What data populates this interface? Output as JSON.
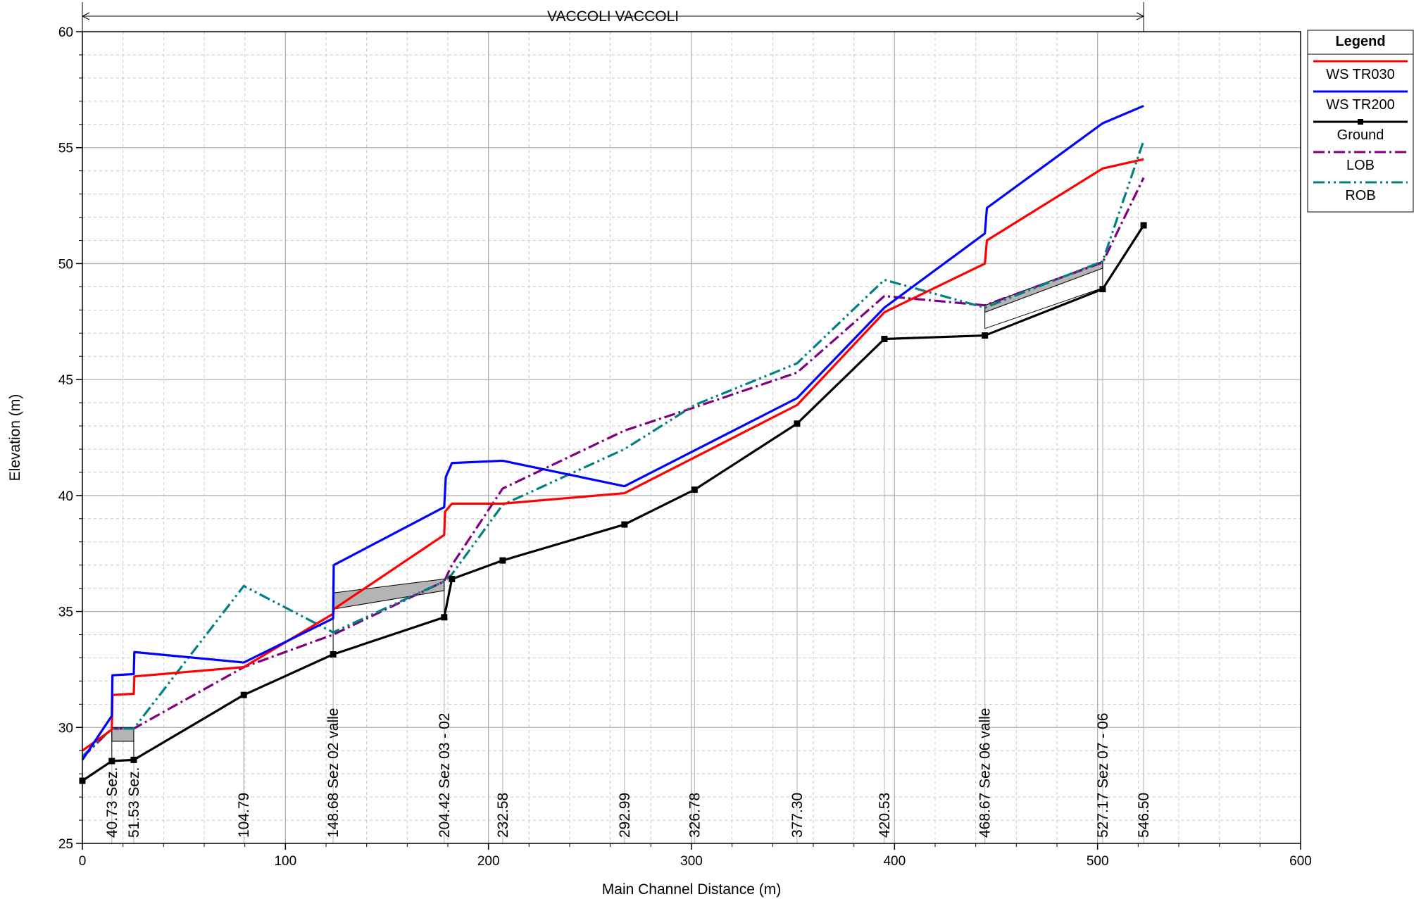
{
  "chart_data": {
    "type": "line",
    "xlabel": "Main Channel Distance (m)",
    "ylabel": "Elevation (m)",
    "xlim": [
      0,
      600
    ],
    "ylim": [
      25,
      60
    ],
    "x_ticks": [
      0,
      100,
      200,
      300,
      400,
      500,
      600
    ],
    "y_ticks": [
      25,
      30,
      35,
      40,
      45,
      50,
      55,
      60
    ],
    "grid": true,
    "legend_position": "right",
    "legend_title": "Legend",
    "reach_label": "VACCOLI VACCOLI",
    "reach_range": [
      0,
      522.7
    ],
    "series": [
      {
        "name": "WS  TR030",
        "color": "#ff0000",
        "dash": "",
        "x": [
          0,
          14.5,
          14.8,
          25.3,
          25.6,
          79.5,
          123.5,
          123.8,
          178.2,
          178.6,
          182.0,
          207.0,
          267.0,
          352.0,
          395.0,
          444.5,
          445.5,
          502.5,
          522.7
        ],
        "y": [
          29.0,
          29.9,
          31.4,
          31.45,
          32.2,
          32.6,
          34.9,
          35.1,
          38.3,
          39.3,
          39.65,
          39.65,
          40.1,
          43.9,
          47.9,
          50.0,
          51.0,
          54.1,
          54.5
        ]
      },
      {
        "name": "WS  TR200",
        "color": "#0000ff",
        "dash": "",
        "x": [
          0,
          14.5,
          14.8,
          25.3,
          25.6,
          79.5,
          123.5,
          123.8,
          178.2,
          179.0,
          182.0,
          207.0,
          267.0,
          352.0,
          395.0,
          444.5,
          445.5,
          502.5,
          522.7
        ],
        "y": [
          28.6,
          30.5,
          32.25,
          32.3,
          33.25,
          32.8,
          34.7,
          37.0,
          39.5,
          40.8,
          41.4,
          41.5,
          40.4,
          44.2,
          48.1,
          51.3,
          52.4,
          56.05,
          56.8
        ]
      },
      {
        "name": "Ground",
        "color": "#000000",
        "dash": "",
        "markers": true,
        "x": [
          0,
          14.5,
          25.3,
          79.5,
          123.5,
          178.2,
          182.0,
          207.0,
          267.0,
          301.5,
          352.0,
          395.0,
          444.5,
          502.5,
          522.7
        ],
        "y": [
          27.7,
          28.55,
          28.6,
          31.4,
          33.15,
          34.75,
          36.4,
          37.2,
          38.75,
          40.25,
          43.1,
          46.75,
          46.9,
          48.9,
          51.65
        ]
      },
      {
        "name": "LOB",
        "color": "#800080",
        "dash": "16,5,3,5",
        "x": [
          0,
          14.5,
          25.3,
          79.5,
          123.5,
          178.2,
          182.0,
          207.0,
          267.0,
          301.5,
          352.0,
          395.0,
          444.5,
          502.5,
          522.7
        ],
        "y": [
          28.7,
          29.95,
          29.95,
          32.6,
          34.0,
          36.3,
          37.0,
          40.3,
          42.8,
          43.8,
          45.3,
          48.6,
          48.2,
          50.05,
          53.7
        ]
      },
      {
        "name": "ROB",
        "color": "#008080",
        "dash": "16,5,3,5,3,5",
        "x": [
          0,
          14.5,
          25.3,
          79.5,
          123.5,
          178.2,
          182.0,
          207.0,
          267.0,
          301.5,
          352.0,
          395.0,
          444.5,
          502.5,
          522.7
        ],
        "y": [
          28.75,
          29.95,
          29.95,
          36.1,
          34.1,
          36.3,
          36.6,
          39.6,
          42.0,
          43.9,
          45.7,
          49.3,
          48.1,
          50.1,
          55.3
        ]
      }
    ],
    "stations": [
      {
        "x": 14.5,
        "label": "40.73 Sez.",
        "ground": 28.55,
        "top": 28.55
      },
      {
        "x": 25.3,
        "label": "51.53 Sez.",
        "ground": 28.6,
        "top": 28.6
      },
      {
        "x": 79.5,
        "label": "104.79",
        "ground": 31.4,
        "top": 31.4
      },
      {
        "x": 123.5,
        "label": "148.68 Sez 02 valle",
        "ground": 33.15,
        "top": 35.8
      },
      {
        "x": 178.2,
        "label": "204.42 Sez 03 - 02",
        "ground": 34.75,
        "top": 36.4
      },
      {
        "x": 207.0,
        "label": "232.58",
        "ground": 37.2,
        "top": 37.2
      },
      {
        "x": 267.0,
        "label": "292.99",
        "ground": 38.75,
        "top": 38.75
      },
      {
        "x": 301.5,
        "label": "326.78",
        "ground": 40.25,
        "top": 40.25
      },
      {
        "x": 352.0,
        "label": "377.30",
        "ground": 43.1,
        "top": 43.1
      },
      {
        "x": 395.0,
        "label": "420.53",
        "ground": 46.75,
        "top": 46.75
      },
      {
        "x": 444.5,
        "label": "468.67 Sez 06 valle",
        "ground": 46.9,
        "top": 48.2
      },
      {
        "x": 502.5,
        "label": "527.17 Sez 07 - 06",
        "ground": 48.9,
        "top": 50.1
      },
      {
        "x": 522.7,
        "label": "546.50",
        "ground": 51.65,
        "top": 51.65
      }
    ],
    "structures": [
      {
        "x1": 14.5,
        "x2": 25.3,
        "top1": 30.0,
        "top2": 30.0,
        "bot1": 29.4,
        "bot2": 29.4,
        "low1": 28.55,
        "low2": 28.6
      },
      {
        "x1": 123.5,
        "x2": 178.2,
        "top1": 35.8,
        "top2": 36.4,
        "bot1": 35.1,
        "bot2": 35.9,
        "low1": 33.15,
        "low2": 34.75
      },
      {
        "x1": 444.5,
        "x2": 502.5,
        "top1": 48.2,
        "top2": 50.1,
        "bot1": 47.9,
        "bot2": 49.8,
        "low1": 47.2,
        "low2": 48.95
      }
    ]
  }
}
